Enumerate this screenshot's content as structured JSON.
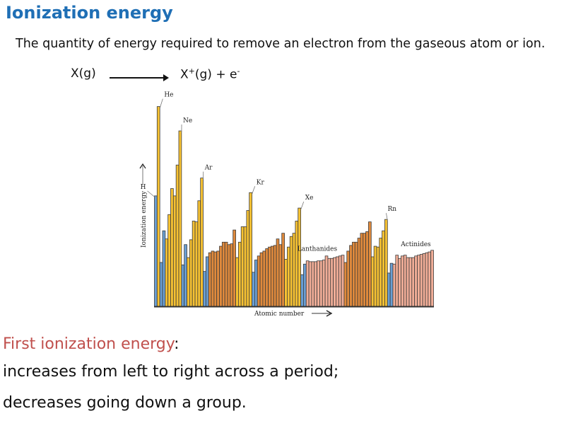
{
  "title": "Ionization energy",
  "definition": "The quantity of energy required to remove an electron from the gaseous atom or ion.",
  "reaction": {
    "reactant": "X(g)",
    "product_base": "X",
    "product_charge": "+",
    "product_rest": "(g) + e",
    "electron_charge": "-"
  },
  "summary": {
    "heading": "First ionization energy",
    "colon": ":",
    "line1": "increases from left to right across a period;",
    "line2": "decreases going down a group."
  },
  "colors": {
    "title": "#1f6fb5",
    "heading": "#c0504d",
    "s_block": "#6a9fd4",
    "p_block": "#f7c232",
    "d_block": "#e08a3c",
    "f_block": "#f2ae98",
    "outline": "#3a3a3a"
  },
  "chart_data": {
    "type": "bar",
    "title": "",
    "xlabel": "Atomic number",
    "ylabel": "Ionization energy",
    "ylim": [
      0,
      25
    ],
    "grid": false,
    "legend": "none",
    "x": [
      1,
      2,
      3,
      4,
      5,
      6,
      7,
      8,
      9,
      10,
      11,
      12,
      13,
      14,
      15,
      16,
      17,
      18,
      19,
      20,
      21,
      22,
      23,
      24,
      25,
      26,
      27,
      28,
      29,
      30,
      31,
      32,
      33,
      34,
      35,
      36,
      37,
      38,
      39,
      40,
      41,
      42,
      43,
      44,
      45,
      46,
      47,
      48,
      49,
      50,
      51,
      52,
      53,
      54,
      55,
      56,
      57,
      58,
      59,
      60,
      61,
      62,
      63,
      64,
      65,
      66,
      67,
      68,
      69,
      70,
      71,
      72,
      73,
      74,
      75,
      76,
      77,
      78,
      79,
      80,
      81,
      82,
      83,
      84,
      85,
      86,
      87,
      88,
      89,
      90,
      91,
      92,
      93,
      94,
      95,
      96,
      97,
      98,
      99,
      100,
      101,
      102,
      103
    ],
    "values": [
      13.6,
      24.6,
      5.4,
      9.3,
      8.3,
      11.3,
      14.5,
      13.6,
      17.4,
      21.6,
      5.1,
      7.6,
      6.0,
      8.2,
      10.5,
      10.4,
      13.0,
      15.8,
      4.3,
      6.1,
      6.6,
      6.8,
      6.7,
      6.8,
      7.4,
      7.9,
      7.9,
      7.6,
      7.7,
      9.4,
      6.0,
      7.9,
      9.8,
      9.8,
      11.8,
      14.0,
      4.2,
      5.7,
      6.2,
      6.6,
      6.8,
      7.1,
      7.3,
      7.4,
      7.5,
      8.3,
      7.6,
      9.0,
      5.8,
      7.3,
      8.6,
      9.0,
      10.5,
      12.1,
      3.9,
      5.2,
      5.6,
      5.5,
      5.5,
      5.5,
      5.6,
      5.6,
      5.7,
      6.2,
      5.9,
      5.9,
      6.0,
      6.1,
      6.2,
      6.3,
      5.4,
      6.8,
      7.5,
      7.9,
      7.9,
      8.4,
      9.0,
      9.0,
      9.2,
      10.4,
      6.1,
      7.4,
      7.3,
      8.4,
      9.3,
      10.7,
      4.1,
      5.3,
      5.2,
      6.3,
      5.9,
      6.2,
      6.3,
      6.0,
      6.0,
      6.0,
      6.2,
      6.3,
      6.4,
      6.5,
      6.6,
      6.7,
      6.9
    ],
    "blocks": [
      "s",
      "p",
      "s",
      "s",
      "p",
      "p",
      "p",
      "p",
      "p",
      "p",
      "s",
      "s",
      "p",
      "p",
      "p",
      "p",
      "p",
      "p",
      "s",
      "s",
      "d",
      "d",
      "d",
      "d",
      "d",
      "d",
      "d",
      "d",
      "d",
      "d",
      "p",
      "p",
      "p",
      "p",
      "p",
      "p",
      "s",
      "s",
      "d",
      "d",
      "d",
      "d",
      "d",
      "d",
      "d",
      "d",
      "d",
      "d",
      "p",
      "p",
      "p",
      "p",
      "p",
      "p",
      "s",
      "s",
      "f",
      "f",
      "f",
      "f",
      "f",
      "f",
      "f",
      "f",
      "f",
      "f",
      "f",
      "f",
      "f",
      "f",
      "d",
      "d",
      "d",
      "d",
      "d",
      "d",
      "d",
      "d",
      "d",
      "d",
      "p",
      "p",
      "p",
      "p",
      "p",
      "p",
      "s",
      "s",
      "f",
      "f",
      "f",
      "f",
      "f",
      "f",
      "f",
      "f",
      "f",
      "f",
      "f",
      "f",
      "f",
      "f",
      "f"
    ],
    "annotations": [
      {
        "label": "H",
        "x": 1
      },
      {
        "label": "He",
        "x": 2
      },
      {
        "label": "Ne",
        "x": 10
      },
      {
        "label": "Ar",
        "x": 18
      },
      {
        "label": "Kr",
        "x": 36
      },
      {
        "label": "Xe",
        "x": 54
      },
      {
        "label": "Rn",
        "x": 86
      },
      {
        "label": "Lanthanides",
        "x": 70
      },
      {
        "label": "Actinides",
        "x": 103
      }
    ]
  }
}
